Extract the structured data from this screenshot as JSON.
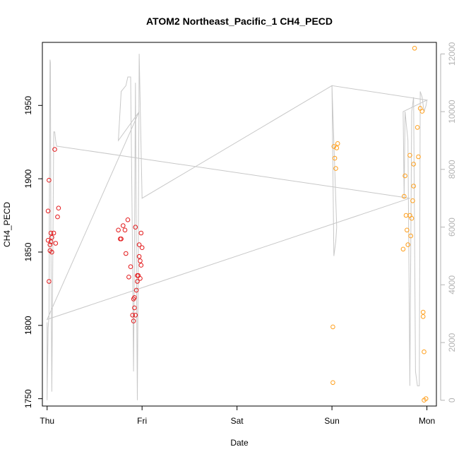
{
  "chart_data": {
    "type": "scatter",
    "title": "ATOM2 Northeast_Pacific_1 CH4_PECD",
    "xlabel": "Date",
    "ylabel": "CH4_PECD",
    "x_ticks": [
      "Thu",
      "Fri",
      "Sat",
      "Sun",
      "Mon"
    ],
    "x_range": [
      -0.05,
      4.1
    ],
    "y_ticks": [
      1750,
      1800,
      1850,
      1900,
      1950
    ],
    "y_range": [
      1745,
      1993
    ],
    "y2_ticks": [
      0,
      2000,
      4000,
      6000,
      8000,
      10000,
      12000
    ],
    "y2_range": [
      -200,
      12400
    ],
    "grid": false,
    "colors": {
      "series1": "#e31a1c",
      "series2": "#ff9f1c",
      "altitude": "#c8c8c8",
      "axis": "#000000",
      "y2_axis": "#b3b3b3"
    },
    "series": [
      {
        "color": "#e31a1c",
        "points": [
          [
            0.01,
            1858
          ],
          [
            0.02,
            1899
          ],
          [
            0.01,
            1878
          ],
          [
            0.02,
            1830
          ],
          [
            0.03,
            1855
          ],
          [
            0.04,
            1863
          ],
          [
            0.04,
            1857
          ],
          [
            0.03,
            1851
          ],
          [
            0.05,
            1860
          ],
          [
            0.05,
            1850
          ],
          [
            0.07,
            1863
          ],
          [
            0.08,
            1920
          ],
          [
            0.09,
            1856
          ],
          [
            0.11,
            1874
          ],
          [
            0.12,
            1880
          ],
          [
            0.75,
            1865
          ],
          [
            0.77,
            1859
          ],
          [
            0.78,
            1859
          ],
          [
            0.8,
            1868
          ],
          [
            0.82,
            1865
          ],
          [
            0.83,
            1849
          ],
          [
            0.85,
            1872
          ],
          [
            0.86,
            1833
          ],
          [
            0.88,
            1840
          ],
          [
            0.9,
            1807
          ],
          [
            0.91,
            1803
          ],
          [
            0.91,
            1818
          ],
          [
            0.92,
            1812
          ],
          [
            0.92,
            1819
          ],
          [
            0.93,
            1867
          ],
          [
            0.93,
            1807
          ],
          [
            0.94,
            1824
          ],
          [
            0.95,
            1830
          ],
          [
            0.95,
            1834
          ],
          [
            0.96,
            1834
          ],
          [
            0.97,
            1847
          ],
          [
            0.97,
            1855
          ],
          [
            0.98,
            1844
          ],
          [
            0.98,
            1832
          ],
          [
            0.99,
            1841
          ],
          [
            0.99,
            1863
          ],
          [
            1.0,
            1853
          ]
        ]
      },
      {
        "color": "#ff9f1c",
        "points": [
          [
            3.01,
            1799
          ],
          [
            3.01,
            1761
          ],
          [
            3.02,
            1922
          ],
          [
            3.03,
            1914
          ],
          [
            3.04,
            1907
          ],
          [
            3.05,
            1921
          ],
          [
            3.06,
            1924
          ],
          [
            3.75,
            1852
          ],
          [
            3.76,
            1888
          ],
          [
            3.77,
            1902
          ],
          [
            3.78,
            1875
          ],
          [
            3.79,
            1865
          ],
          [
            3.8,
            1855
          ],
          [
            3.82,
            1875
          ],
          [
            3.82,
            1916
          ],
          [
            3.83,
            1861
          ],
          [
            3.84,
            1873
          ],
          [
            3.85,
            1885
          ],
          [
            3.86,
            1910
          ],
          [
            3.86,
            1895
          ],
          [
            3.87,
            1989
          ],
          [
            3.9,
            1935
          ],
          [
            3.91,
            1915
          ],
          [
            3.93,
            1948
          ],
          [
            3.95,
            1946
          ],
          [
            3.96,
            1806
          ],
          [
            3.96,
            1809
          ],
          [
            3.97,
            1782
          ],
          [
            3.97,
            1749
          ],
          [
            3.99,
            1750
          ]
        ]
      }
    ],
    "altitude_line": {
      "axis": "y2",
      "points": [
        [
          0.0,
          2700
        ],
        [
          0.0,
          0
        ],
        [
          0.01,
          2500
        ],
        [
          0.02,
          2900
        ],
        [
          0.03,
          11800
        ],
        [
          0.035,
          11700
        ],
        [
          0.04,
          5500
        ],
        [
          0.05,
          300
        ],
        [
          0.06,
          5000
        ],
        [
          0.07,
          9300
        ],
        [
          0.08,
          9300
        ],
        [
          0.09,
          9000
        ],
        [
          0.1,
          8800
        ],
        [
          0.11,
          8800
        ],
        [
          3.82,
          7000
        ],
        [
          0.0,
          2800
        ],
        [
          0.97,
          10000
        ],
        [
          0.75,
          9000
        ],
        [
          0.78,
          10700
        ],
        [
          0.83,
          10900
        ],
        [
          0.85,
          11200
        ],
        [
          0.88,
          11200
        ],
        [
          0.9,
          5000
        ],
        [
          0.91,
          1000
        ],
        [
          0.92,
          5000
        ],
        [
          0.93,
          11000
        ],
        [
          0.94,
          5000
        ],
        [
          0.95,
          0
        ],
        [
          0.96,
          5000
        ],
        [
          0.97,
          12000
        ],
        [
          1.0,
          7000
        ],
        [
          3.0,
          10900
        ],
        [
          3.02,
          5000
        ],
        [
          3.04,
          5500
        ],
        [
          3.05,
          6000
        ],
        [
          3.0,
          10900
        ],
        [
          4.0,
          10400
        ],
        [
          3.75,
          10000
        ],
        [
          3.76,
          7000
        ],
        [
          3.77,
          10000
        ],
        [
          3.8,
          9000
        ],
        [
          3.82,
          500
        ],
        [
          3.84,
          10000
        ],
        [
          3.86,
          10500
        ],
        [
          3.88,
          1000
        ],
        [
          3.9,
          500
        ],
        [
          3.92,
          500
        ],
        [
          3.93,
          10700
        ],
        [
          3.95,
          10500
        ],
        [
          3.97,
          10000
        ],
        [
          3.99,
          10200
        ],
        [
          4.0,
          10400
        ]
      ]
    }
  }
}
